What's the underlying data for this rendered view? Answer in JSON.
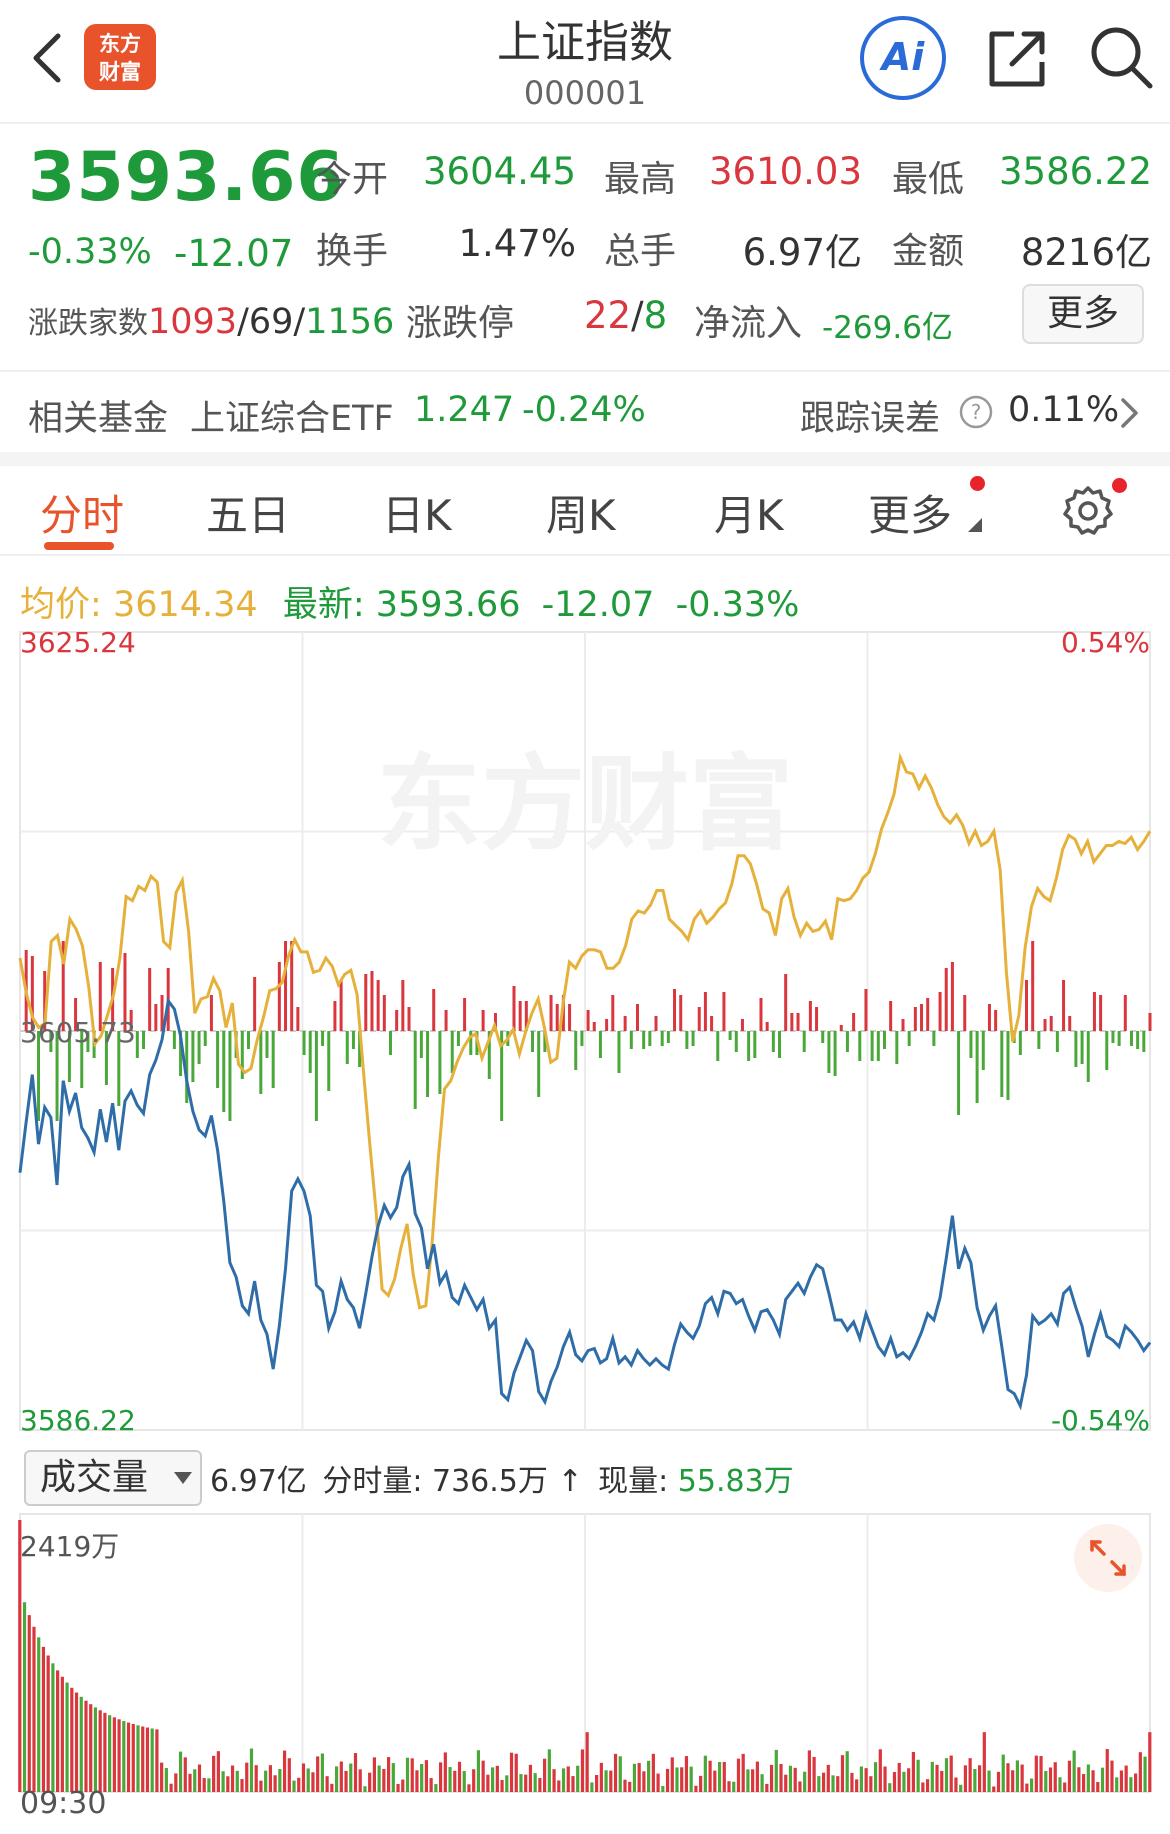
{
  "header": {
    "logo_line1": "东方",
    "logo_line2": "财富",
    "title": "上证指数",
    "code": "000001",
    "ai_label": "Ai"
  },
  "quote": {
    "price": "3593.66",
    "change_pct": "-0.33%",
    "change": "-12.07",
    "open_label": "今开",
    "open": "3604.45",
    "high_label": "最高",
    "high": "3610.03",
    "low_label": "最低",
    "low": "3586.22",
    "turnover_label": "换手",
    "turnover": "1.47%",
    "volume_label": "总手",
    "volume": "6.97亿",
    "amount_label": "金额",
    "amount": "8216亿",
    "breadth_label": "涨跌家数",
    "breadth_up": "1093",
    "breadth_sep1": "/",
    "breadth_flat": "69",
    "breadth_sep2": "/",
    "breadth_down": "1156",
    "limit_label": "涨跌停",
    "limit_up": "22",
    "limit_sep": "/",
    "limit_down": "8",
    "netflow_label": "净流入",
    "netflow": "-269.6亿",
    "more_label": "更多"
  },
  "fund": {
    "label": "相关基金",
    "name": "上证综合ETF",
    "price": "1.247",
    "change": "-0.24%",
    "tracking_label": "跟踪误差",
    "tracking_value": "0.11%"
  },
  "tabs": [
    {
      "label": "分时",
      "active": true
    },
    {
      "label": "五日"
    },
    {
      "label": "日K"
    },
    {
      "label": "周K"
    },
    {
      "label": "月K"
    },
    {
      "label": "更多"
    }
  ],
  "info_line": {
    "avg_label": "均价:",
    "avg_value": "3614.34",
    "latest_label": "最新:",
    "latest_value": "3593.66",
    "change": "-12.07",
    "change_pct": "-0.33%"
  },
  "chart_labels": {
    "top_price": "3625.24",
    "mid_price": "3605.73",
    "bottom_price": "3586.22",
    "top_pct": "0.54%",
    "bottom_pct": "-0.54%",
    "watermark": "东方财富"
  },
  "volume_panel": {
    "select_label": "成交量",
    "total": "6.97亿",
    "minute_label": "分时量:",
    "minute_value": "736.5万",
    "now_label": "现量:",
    "now_value": "55.83万",
    "max_label": "2419万",
    "time_start": "09:30"
  },
  "chart_data": {
    "type": "line",
    "ylim": [
      3586.22,
      3625.24
    ],
    "prev_close": 3605.73,
    "series": [
      {
        "name": "最新",
        "color": "#2f6da8",
        "values": [
          3598.8,
          3601.3,
          3603.6,
          3600.2,
          3602.0,
          3601.5,
          3598.2,
          3603.3,
          3601.8,
          3602.7,
          3601.0,
          3600.5,
          3599.8,
          3601.9,
          3600.3,
          3602.2,
          3599.9,
          3602.3,
          3602.8,
          3602.1,
          3601.7,
          3603.6,
          3604.3,
          3605.3,
          3607.2,
          3606.8,
          3605.5,
          3603.3,
          3601.8,
          3600.9,
          3600.6,
          3601.6,
          3599.9,
          3597.4,
          3594.4,
          3593.7,
          3592.3,
          3591.9,
          3593.5,
          3591.6,
          3590.9,
          3589.2,
          3591.3,
          3594.1,
          3597.9,
          3598.5,
          3597.9,
          3596.7,
          3593.3,
          3593.0,
          3591.2,
          3592.0,
          3593.5,
          3592.6,
          3592.2,
          3591.2,
          3592.9,
          3594.7,
          3596.2,
          3597.2,
          3596.6,
          3597.1,
          3598.6,
          3599.2,
          3596.8,
          3596.1,
          3594.1,
          3595.3,
          3593.4,
          3593.9,
          3592.7,
          3592.4,
          3593.3,
          3592.7,
          3592.1,
          3592.6,
          3591.2,
          3591.6,
          3588.0,
          3587.7,
          3589.0,
          3589.8,
          3590.6,
          3590.1,
          3588.1,
          3587.6,
          3588.6,
          3589.3,
          3590.3,
          3591.0,
          3589.9,
          3589.6,
          3590.1,
          3590.2,
          3589.5,
          3589.7,
          3590.7,
          3589.5,
          3589.8,
          3589.4,
          3590.1,
          3589.7,
          3589.4,
          3589.7,
          3589.4,
          3589.2,
          3590.4,
          3591.4,
          3591.0,
          3590.7,
          3591.3,
          3592.4,
          3592.7,
          3591.9,
          3593.0,
          3592.9,
          3592.4,
          3592.6,
          3591.8,
          3591.1,
          3592.0,
          3592.1,
          3591.6,
          3590.9,
          3592.6,
          3593.0,
          3593.4,
          3592.9,
          3593.7,
          3594.3,
          3594.1,
          3592.9,
          3591.6,
          3591.6,
          3591.1,
          3591.5,
          3590.7,
          3591.9,
          3591.1,
          3590.3,
          3589.9,
          3590.7,
          3589.8,
          3590.0,
          3589.7,
          3590.3,
          3591.0,
          3591.9,
          3591.6,
          3592.7,
          3594.6,
          3596.7,
          3594.1,
          3595.1,
          3594.4,
          3592.2,
          3591.1,
          3591.8,
          3592.3,
          3590.3,
          3588.2,
          3588.0,
          3587.4,
          3588.9,
          3591.8,
          3591.4,
          3591.6,
          3591.9,
          3591.4,
          3592.9,
          3593.2,
          3592.2,
          3591.3,
          3589.8,
          3590.9,
          3591.9,
          3590.8,
          3590.6,
          3590.3,
          3591.3,
          3591.0,
          3590.6,
          3590.1,
          3590.5
        ],
        "note_values": "approximate shape only"
      },
      {
        "name": "均价",
        "color": "#e6b13a",
        "values": [
          3609.3,
          3607.6,
          3606.4,
          3605.9,
          3606.1,
          3610.1,
          3610.4,
          3609.0,
          3611.2,
          3610.7,
          3609.9,
          3607.9,
          3605.1,
          3605.5,
          3606.5,
          3607.5,
          3609.3,
          3612.3,
          3612.1,
          3612.8,
          3612.6,
          3613.3,
          3613.0,
          3610.1,
          3609.8,
          3612.5,
          3613.1,
          3610.6,
          3606.6,
          3607.3,
          3607.4,
          3608.3,
          3607.7,
          3605.9,
          3607.1,
          3604.1,
          3603.7,
          3603.9,
          3605.3,
          3606.4,
          3607.7,
          3607.8,
          3608.1,
          3609.4,
          3610.2,
          3609.6,
          3609.6,
          3608.6,
          3608.7,
          3609.3,
          3608.9,
          3608.0,
          3608.5,
          3608.7,
          3607.5,
          3603.8,
          3600.3,
          3597.0,
          3593.1,
          3592.8,
          3593.6,
          3595.1,
          3596.3,
          3593.8,
          3592.2,
          3592.3,
          3595.3,
          3599.5,
          3602.9,
          3603.3,
          3604.2,
          3604.9,
          3605.4,
          3605.6,
          3604.4,
          3605.2,
          3606.0,
          3605.0,
          3605.3,
          3605.8,
          3604.6,
          3605.7,
          3606.6,
          3607.3,
          3605.9,
          3604.2,
          3604.4,
          3607.1,
          3609.1,
          3608.8,
          3609.4,
          3609.7,
          3609.7,
          3609.6,
          3608.8,
          3608.8,
          3609.1,
          3609.9,
          3611.2,
          3611.6,
          3611.5,
          3611.9,
          3612.6,
          3612.6,
          3611.2,
          3610.9,
          3610.6,
          3610.2,
          3611.2,
          3611.6,
          3611.0,
          3611.3,
          3611.7,
          3612.0,
          3612.9,
          3614.3,
          3614.3,
          3613.9,
          3612.9,
          3611.7,
          3611.5,
          3610.4,
          3612.2,
          3612.7,
          3611.3,
          3610.4,
          3611.0,
          3610.6,
          3610.7,
          3611.1,
          3610.2,
          3612.2,
          3612.1,
          3612.2,
          3612.6,
          3613.2,
          3613.5,
          3614.4,
          3615.6,
          3616.4,
          3617.3,
          3619.1,
          3618.4,
          3618.3,
          3617.6,
          3618.2,
          3617.6,
          3616.8,
          3616.2,
          3615.9,
          3616.3,
          3615.8,
          3614.9,
          3615.5,
          3614.8,
          3615.0,
          3615.5,
          3613.6,
          3608.6,
          3605.2,
          3606.5,
          3609.8,
          3611.8,
          3612.7,
          3612.3,
          3612.1,
          3613.2,
          3614.6,
          3615.3,
          3615.1,
          3614.4,
          3615.0,
          3614.0,
          3614.4,
          3614.8,
          3614.8,
          3615.0,
          3614.9,
          3615.2,
          3614.6,
          3615.0,
          3615.5
        ]
      }
    ],
    "volume_ylim": [
      0,
      2419
    ]
  }
}
